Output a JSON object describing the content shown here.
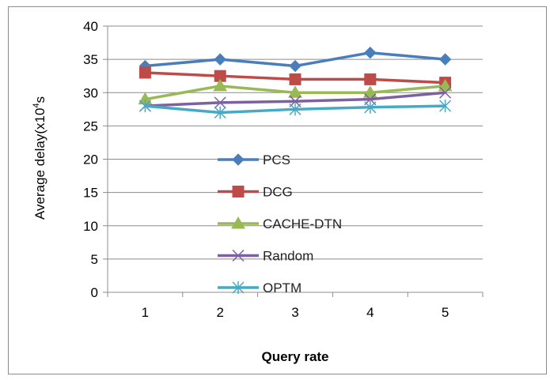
{
  "chart_data": {
    "type": "line",
    "title": "",
    "xlabel": "Query rate",
    "ylabel": "Average delay(x10",
    "ylabel_sup": "4",
    "ylabel_suffix": "s",
    "categories": [
      "1",
      "2",
      "3",
      "4",
      "5"
    ],
    "ylim": [
      0,
      40
    ],
    "yticks": [
      "0",
      "5",
      "10",
      "15",
      "20",
      "25",
      "30",
      "35",
      "40"
    ],
    "grid": "horizontal",
    "legend_position": "inside-center",
    "series": [
      {
        "name": "PCS",
        "color": "#4a7ebb",
        "marker": "diamond",
        "values": [
          34,
          35,
          34,
          36,
          35
        ]
      },
      {
        "name": "DCG",
        "color": "#be4b48",
        "marker": "square",
        "values": [
          33,
          32.5,
          32,
          32,
          31.5
        ]
      },
      {
        "name": "CACHE-DTN",
        "color": "#98b954",
        "marker": "triangle",
        "values": [
          29,
          31,
          30,
          30,
          31
        ]
      },
      {
        "name": "Random",
        "color": "#7d60a0",
        "marker": "x",
        "values": [
          28,
          28.5,
          28.7,
          29,
          30
        ]
      },
      {
        "name": "OPTM",
        "color": "#46aac5",
        "marker": "asterisk",
        "values": [
          28,
          27,
          27.5,
          27.8,
          28
        ]
      }
    ]
  }
}
